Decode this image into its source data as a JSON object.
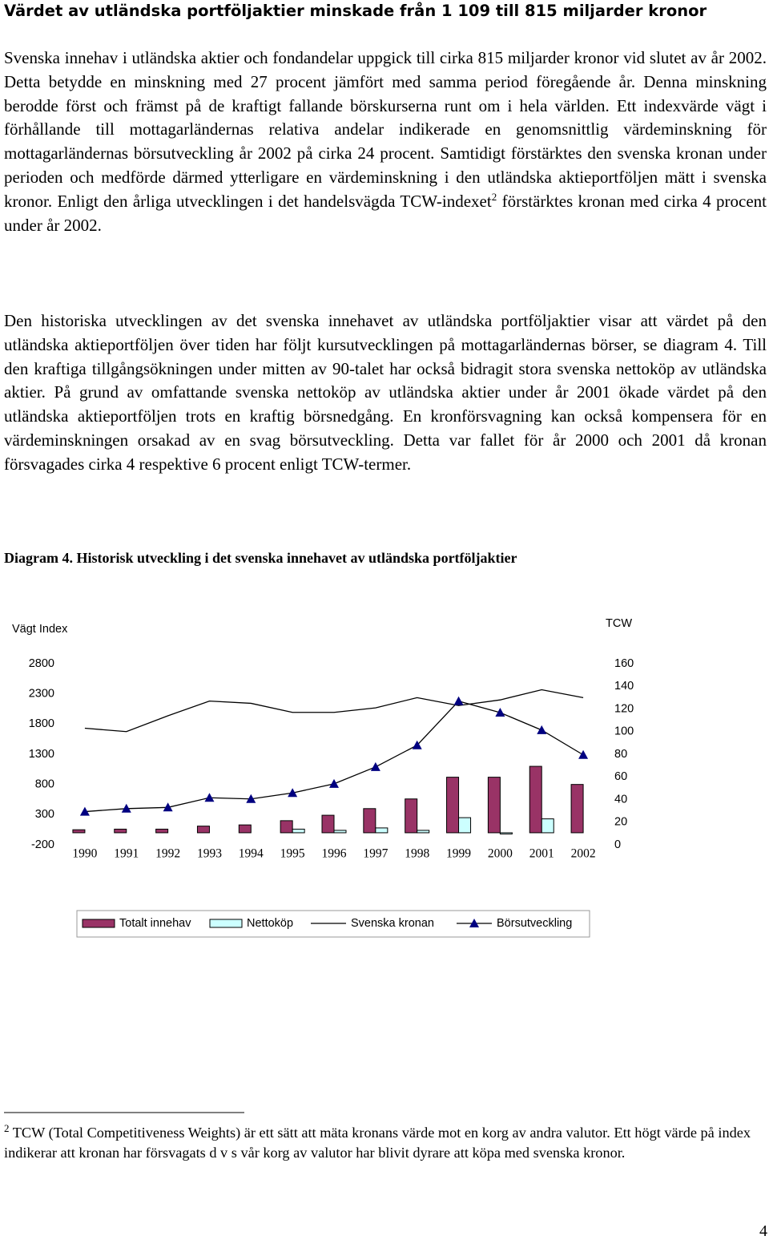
{
  "title": "Värdet av utländska portföljaktier minskade från 1 109 till 815 miljarder kronor",
  "paragraphs": [
    {
      "before": "Svenska innehav i utländska aktier och fondandelar uppgick till cirka 815 miljarder kronor vid slutet av år 2002. Detta betydde en minskning med 27 procent jämfört med samma period föregående år. Denna minskning berodde först och främst på de kraftigt fallande börskurserna runt om i hela världen. Ett indexvärde vägt i förhållande till mottagarländernas relativa andelar indikerade en genomsnittlig värdeminskning för mottagarländernas börsutveckling år 2002 på cirka 24 procent. Samtidigt förstärktes den svenska kronan under perioden och medförde därmed ytterligare en värdeminskning i den utländska aktieportföljen mätt i svenska kronor. Enligt den årliga utvecklingen i det handelsvägda TCW-indexet",
      "sup": "2",
      "after": " förstärktes kronan med cirka 4 procent under år 2002."
    },
    {
      "before": "Den historiska utvecklingen av det svenska innehavet av utländska portföljaktier visar att värdet på den utländska aktieportföljen över tiden har följt kursutvecklingen på mottagarländernas börser, se diagram 4. Till den kraftiga tillgångsökningen under mitten av 90-talet har också bidragit stora svenska nettoköp av utländska aktier. På grund av omfattande svenska nettoköp av utländska aktier under år 2001 ökade värdet på den utländska aktieportföljen trots en kraftig börsnedgång. En kronförsvagning kan också kompensera för en värdeminskningen orsakad av en svag börsutveckling. Detta var fallet för år 2000 och 2001 då kronan försvagades cirka 4 respektive 6 procent enligt TCW-termer."
    }
  ],
  "diagram_caption": "Diagram 4. Historisk utveckling i det svenska innehavet av utländska portföljaktier",
  "chart_data": {
    "type": "bar-line",
    "ylabel": "Vägt Index",
    "y2label": "TCW",
    "categories": [
      "1990",
      "1991",
      "1992",
      "1993",
      "1994",
      "1995",
      "1996",
      "1997",
      "1998",
      "1999",
      "2000",
      "2001",
      "2002"
    ],
    "ylim": [
      -200,
      2800
    ],
    "yticks": [
      -200,
      300,
      800,
      1300,
      1800,
      2300,
      2800
    ],
    "y2lim": [
      0,
      160
    ],
    "y2ticks": [
      0,
      20,
      40,
      60,
      80,
      100,
      120,
      140,
      160
    ],
    "series": [
      {
        "name": "Totalt innehav",
        "kind": "bar",
        "color": "#993366",
        "values": [
          50,
          60,
          60,
          110,
          130,
          200,
          290,
          400,
          560,
          920,
          920,
          1100,
          800
        ]
      },
      {
        "name": "Nettoköp",
        "kind": "bar",
        "color": "#ccffff",
        "values": [
          0,
          0,
          0,
          0,
          0,
          60,
          40,
          80,
          40,
          250,
          -20,
          230,
          0
        ]
      },
      {
        "name": "Svenska kronan",
        "kind": "line",
        "axis": "y2",
        "color": "#000000",
        "values": [
          103,
          100,
          114,
          127,
          125,
          117,
          117,
          121,
          130,
          123,
          128,
          137,
          130
        ]
      },
      {
        "name": "Börsutveckling",
        "kind": "line-marker",
        "color": "#000080",
        "values": [
          350,
          400,
          420,
          580,
          560,
          660,
          810,
          1090,
          1450,
          2180,
          1990,
          1700,
          1290
        ]
      }
    ]
  },
  "footnote": {
    "marker": "2",
    "text": "TCW (Total Competitiveness Weights) är ett sätt att mäta kronans värde mot en korg av andra valutor. Ett högt värde på index indikerar att kronan har försvagats d v s vår korg av valutor har blivit dyrare att köpa med svenska kronor."
  },
  "page_number": "4"
}
